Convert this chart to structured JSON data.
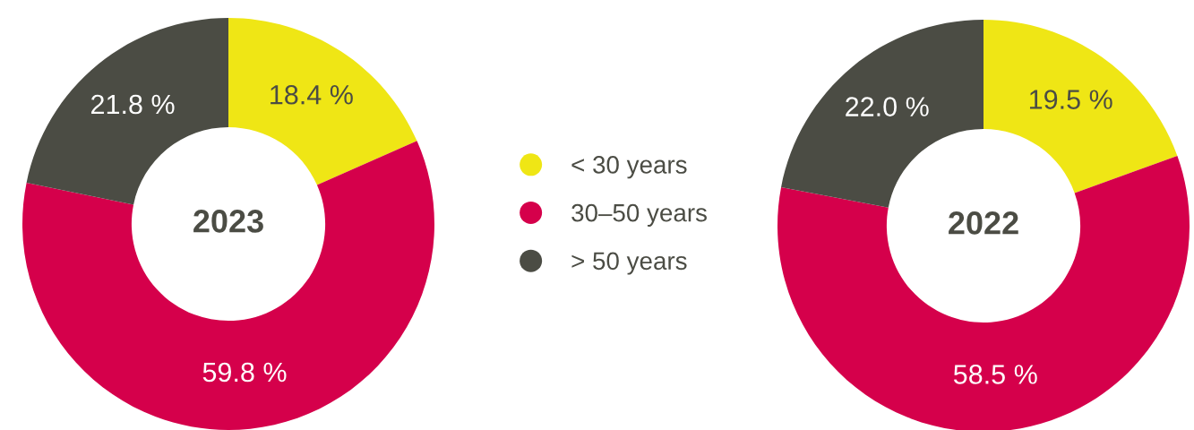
{
  "chart_data": [
    {
      "type": "donut",
      "title": "2023",
      "categories": [
        "< 30 years",
        "30–50 years",
        "> 50 years"
      ],
      "values": [
        18.4,
        59.8,
        21.8
      ],
      "colors": [
        "#efe615",
        "#d5004b",
        "#4b4c44"
      ],
      "value_labels": [
        "18.4 %",
        "59.8 %",
        "21.8 %"
      ],
      "legend": "right"
    },
    {
      "type": "donut",
      "title": "2022",
      "categories": [
        null,
        null,
        null
      ],
      "values": [
        19.5,
        58.5,
        22.0
      ],
      "colors": [
        "#efe615",
        "#d5004b",
        "#4b4c44"
      ],
      "value_labels": [
        "19.5 %",
        "58.5 %",
        "22.0 %"
      ]
    }
  ]
}
